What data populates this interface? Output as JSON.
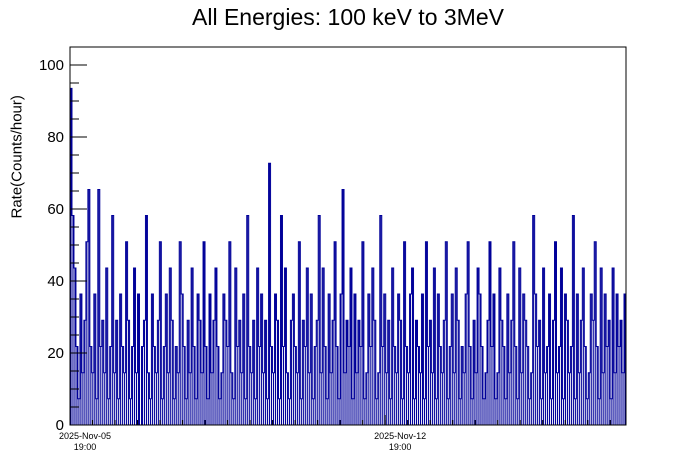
{
  "chart_data": {
    "type": "bar",
    "title": "All Energies:  100 keV to 3MeV",
    "xlabel": "",
    "ylabel": "Rate(Counts/hour)",
    "ylim": [
      0,
      105
    ],
    "yticks": [
      0,
      20,
      40,
      60,
      80,
      100
    ],
    "xticks": [
      {
        "date": "2025-Nov-05",
        "time": "19:00",
        "day_offset": 0
      },
      {
        "date": "2025-Nov-12",
        "time": "19:00",
        "day_offset": 7
      }
    ],
    "x_range_days": [
      0,
      12.35
    ],
    "series_color": "#000099",
    "values": [
      93.5,
      58.2,
      43.6,
      21.8,
      7.3,
      36.4,
      14.5,
      29.1,
      50.9,
      65.4,
      21.8,
      14.5,
      36.4,
      7.3,
      65.4,
      21.8,
      29.1,
      14.5,
      43.6,
      7.3,
      21.8,
      58.2,
      14.5,
      29.1,
      7.3,
      36.4,
      21.8,
      14.5,
      50.9,
      29.1,
      7.3,
      21.8,
      43.6,
      14.5,
      36.4,
      0,
      21.8,
      29.1,
      58.2,
      14.5,
      7.3,
      36.4,
      21.8,
      14.5,
      29.1,
      50.9,
      7.3,
      21.8,
      36.4,
      14.5,
      43.6,
      29.1,
      7.3,
      21.8,
      14.5,
      50.9,
      36.4,
      21.8,
      7.3,
      29.1,
      14.5,
      43.6,
      21.8,
      7.3,
      36.4,
      29.1,
      14.5,
      50.9,
      21.8,
      7.3,
      36.4,
      14.5,
      29.1,
      43.6,
      21.8,
      7.3,
      14.5,
      36.4,
      29.1,
      21.8,
      50.9,
      14.5,
      7.3,
      43.6,
      21.8,
      29.1,
      14.5,
      36.4,
      7.3,
      58.2,
      21.8,
      14.5,
      29.1,
      7.3,
      43.6,
      21.8,
      36.4,
      14.5,
      29.1,
      7.3,
      72.7,
      21.8,
      14.5,
      36.4,
      29.1,
      7.3,
      58.2,
      21.8,
      43.6,
      14.5,
      7.3,
      29.1,
      36.4,
      21.8,
      14.5,
      50.9,
      7.3,
      29.1,
      21.8,
      43.6,
      14.5,
      36.4,
      7.3,
      21.8,
      29.1,
      58.2,
      14.5,
      43.6,
      21.8,
      7.3,
      36.4,
      14.5,
      29.1,
      50.9,
      21.8,
      7.3,
      36.4,
      65.4,
      14.5,
      29.1,
      21.8,
      43.6,
      7.3,
      36.4,
      14.5,
      29.1,
      21.8,
      50.9,
      7.3,
      14.5,
      36.4,
      21.8,
      43.6,
      29.1,
      7.3,
      14.5,
      58.2,
      21.8,
      36.4,
      14.5,
      29.1,
      7.3,
      43.6,
      21.8,
      14.5,
      36.4,
      29.1,
      7.3,
      50.9,
      21.8,
      14.5,
      36.4,
      43.6,
      7.3,
      29.1,
      21.8,
      14.5,
      36.4,
      7.3,
      50.9,
      21.8,
      29.1,
      14.5,
      43.6,
      7.3,
      36.4,
      21.8,
      14.5,
      29.1,
      50.9,
      7.3,
      21.8,
      36.4,
      14.5,
      43.6,
      29.1,
      7.3,
      21.8,
      14.5,
      36.4,
      50.9,
      21.8,
      7.3,
      29.1,
      14.5,
      43.6,
      36.4,
      21.8,
      7.3,
      14.5,
      29.1,
      50.9,
      21.8,
      36.4,
      7.3,
      14.5,
      43.6,
      29.1,
      21.8,
      7.3,
      36.4,
      14.5,
      29.1,
      50.9,
      21.8,
      7.3,
      43.6,
      14.5,
      36.4,
      29.1,
      21.8,
      7.3,
      14.5,
      58.2,
      36.4,
      21.8,
      29.1,
      7.3,
      43.6,
      14.5,
      21.8,
      36.4,
      7.3,
      29.1,
      50.9,
      14.5,
      21.8,
      43.6,
      7.3,
      36.4,
      29.1,
      14.5,
      21.8,
      58.2,
      7.3,
      36.4,
      14.5,
      29.1,
      43.6,
      21.8,
      7.3,
      14.5,
      36.4,
      29.1,
      50.9,
      21.8,
      7.3,
      43.6,
      14.5,
      36.4,
      21.8,
      29.1,
      7.3,
      43.6,
      14.5,
      36.4,
      21.8,
      29.1,
      14.5,
      36.4
    ]
  }
}
